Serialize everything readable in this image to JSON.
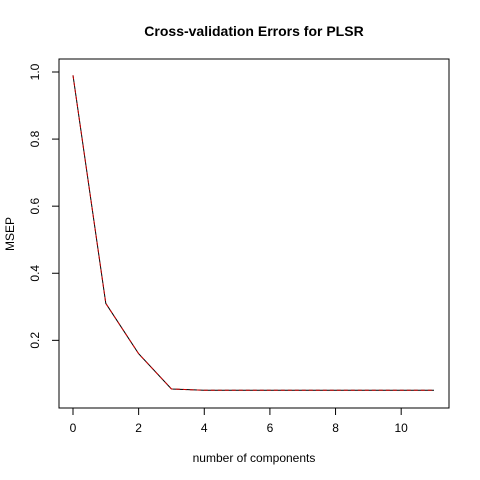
{
  "chart_data": {
    "type": "line",
    "title": "Cross-validation Errors for PLSR",
    "xlabel": "number of components",
    "ylabel": "MSEP",
    "xlim": [
      0,
      11
    ],
    "ylim": [
      0.04,
      1.0
    ],
    "x_ticks": [
      0,
      2,
      4,
      6,
      8,
      10
    ],
    "y_ticks": [
      0.2,
      0.4,
      0.6,
      0.8,
      1.0
    ],
    "grid": false,
    "legend": "none",
    "series": [
      {
        "color": "#000000",
        "style": "solid",
        "x": [
          0,
          1,
          2,
          3,
          4,
          5,
          6,
          7,
          8,
          9,
          10,
          11
        ],
        "values": [
          0.99,
          0.31,
          0.16,
          0.055,
          0.051,
          0.051,
          0.051,
          0.051,
          0.051,
          0.051,
          0.051,
          0.051
        ]
      },
      {
        "color": "#cc0000",
        "style": "dashed",
        "x": [
          0,
          1,
          2,
          3,
          4,
          5,
          6,
          7,
          8,
          9,
          10,
          11
        ],
        "values": [
          0.99,
          0.31,
          0.16,
          0.055,
          0.051,
          0.051,
          0.051,
          0.051,
          0.051,
          0.051,
          0.051,
          0.051
        ]
      }
    ]
  }
}
